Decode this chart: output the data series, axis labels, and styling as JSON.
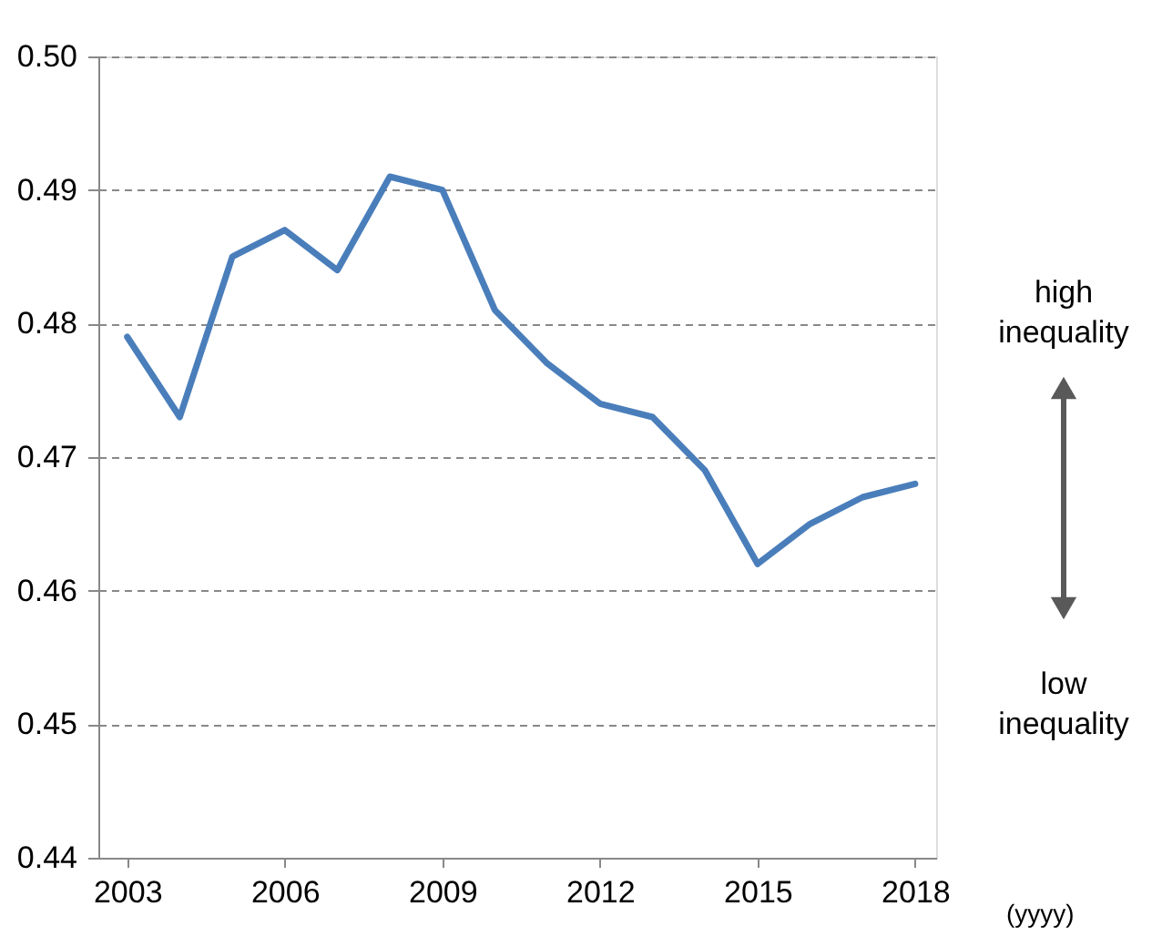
{
  "chart_data": {
    "type": "line",
    "xlabel": "(yyyy)",
    "x": [
      2003,
      2004,
      2005,
      2006,
      2007,
      2008,
      2009,
      2010,
      2011,
      2012,
      2013,
      2014,
      2015,
      2016,
      2017,
      2018
    ],
    "series": [
      {
        "color": "#4a7ebb",
        "values": [
          0.479,
          0.473,
          0.485,
          0.487,
          0.484,
          0.491,
          0.49,
          0.481,
          0.477,
          0.474,
          0.473,
          0.469,
          0.462,
          0.465,
          0.467,
          0.468
        ]
      }
    ],
    "xlim": [
      2002.45,
      2018.4
    ],
    "xticks": [
      2003,
      2006,
      2009,
      2012,
      2015,
      2018
    ],
    "ylim": [
      0.44,
      0.5
    ],
    "yticks": [
      0.44,
      0.45,
      0.46,
      0.47,
      0.48,
      0.49,
      {
        "value": 0.5,
        "label": "0.50"
      }
    ],
    "grid": "y",
    "line_style": "solid",
    "marker": "none",
    "annotations": [
      "high inequality",
      "low inequality"
    ]
  }
}
